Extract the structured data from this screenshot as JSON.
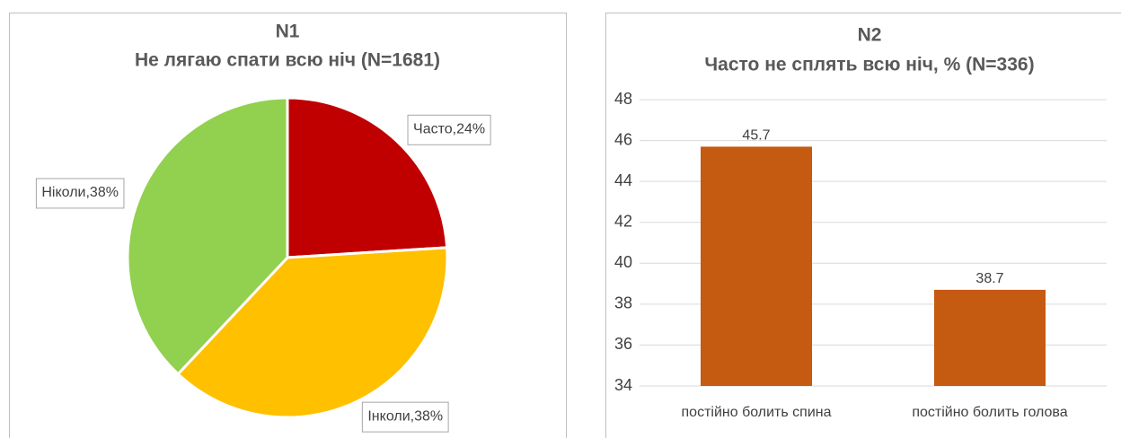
{
  "chart_data": [
    {
      "type": "pie",
      "title": "N1",
      "subtitle": "Не лягаю спати всю ніч (N=1681)",
      "values": [
        24,
        38,
        38
      ],
      "value_labels": [
        "Часто,24%",
        "Інколи,38%",
        "Ніколи,38%"
      ],
      "colors": [
        "#c00000",
        "#ffc000",
        "#92d050"
      ]
    },
    {
      "type": "bar",
      "title": "N2",
      "subtitle": "Часто не сплять всю ніч, % (N=336)",
      "categories": [
        "постійно болить спина",
        "постійно болить голова"
      ],
      "values": [
        45.7,
        38.7
      ],
      "color": "#c55a11",
      "ylim": [
        34,
        48
      ],
      "yticks": [
        34,
        36,
        38,
        40,
        42,
        44,
        46,
        48
      ],
      "grid": true
    }
  ]
}
